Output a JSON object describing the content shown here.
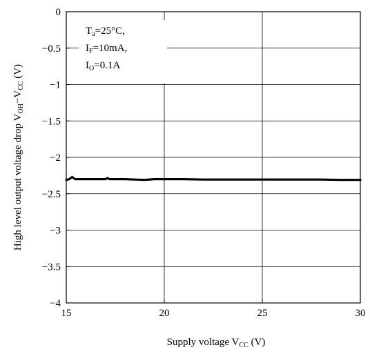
{
  "chart_data": {
    "type": "line",
    "xlabel": {
      "main": "Supply voltage V",
      "sub": "CC",
      "tail": " (V)"
    },
    "ylabel": {
      "part1": "High level output voltage drop V",
      "sub1": "OH",
      "mid": "−V",
      "sub2": "CC",
      "tail": " (V)"
    },
    "xlim": [
      15,
      30
    ],
    "ylim": [
      -4,
      0
    ],
    "x_ticks": [
      15,
      20,
      25,
      30
    ],
    "x_tick_labels": [
      "15",
      "20",
      "25",
      "30"
    ],
    "y_ticks": [
      0,
      -0.5,
      -1,
      -1.5,
      -2,
      -2.5,
      -3,
      -3.5,
      -4
    ],
    "y_tick_labels": [
      "0",
      "−0.5",
      "−1",
      "−1.5",
      "−2",
      "−2.5",
      "−3",
      "−3.5",
      "−4"
    ],
    "grid_x": [
      20,
      25
    ],
    "grid_y": [
      -0.5,
      -1,
      -1.5,
      -2,
      -2.5,
      -3,
      -3.5
    ],
    "annotation": [
      {
        "main": "T",
        "sub": "a",
        "tail": "=25°C,"
      },
      {
        "main": "I",
        "sub": "F",
        "tail": "=10mA,"
      },
      {
        "main": "I",
        "sub": "O",
        "tail": "=0.1A"
      }
    ],
    "series": [
      {
        "color": "#000000",
        "x": [
          15.0,
          15.15,
          15.3,
          15.45,
          15.6,
          16.0,
          16.5,
          17.0,
          17.1,
          17.2,
          17.5,
          18.0,
          18.5,
          19.0,
          19.5,
          20.0,
          21.0,
          22.0,
          23.0,
          24.0,
          25.0,
          26.0,
          27.0,
          28.0,
          29.0,
          30.0
        ],
        "y": [
          -2.31,
          -2.3,
          -2.27,
          -2.3,
          -2.3,
          -2.3,
          -2.3,
          -2.3,
          -2.285,
          -2.3,
          -2.3,
          -2.3,
          -2.305,
          -2.31,
          -2.3,
          -2.3,
          -2.3,
          -2.305,
          -2.305,
          -2.305,
          -2.305,
          -2.305,
          -2.305,
          -2.305,
          -2.31,
          -2.31
        ]
      }
    ]
  }
}
